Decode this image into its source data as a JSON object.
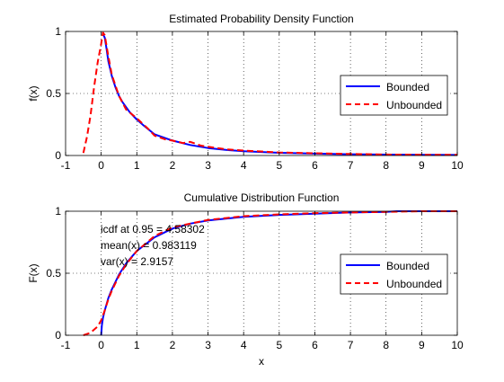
{
  "chart_data": [
    {
      "type": "line",
      "title": "Estimated Probability Density Function",
      "xlabel": "",
      "ylabel": "f(x)",
      "xlim": [
        -1,
        10
      ],
      "ylim": [
        0,
        1
      ],
      "xticks": [
        "-1",
        "0",
        "1",
        "2",
        "3",
        "4",
        "5",
        "6",
        "7",
        "8",
        "9",
        "10"
      ],
      "yticks": [
        "0",
        "0.5",
        "1"
      ],
      "grid": true,
      "legend": {
        "position": "right",
        "entries": [
          "Bounded",
          "Unbounded"
        ]
      },
      "series": [
        {
          "name": "Bounded",
          "color": "#0000ff",
          "style": "solid",
          "x": [
            0.05,
            0.1,
            0.15,
            0.2,
            0.3,
            0.4,
            0.5,
            0.6,
            0.8,
            1.0,
            1.2,
            1.5,
            2.0,
            2.5,
            3.0,
            3.5,
            4.0,
            4.5,
            5.0,
            6.0,
            7.0,
            8.0,
            9.0,
            10.0
          ],
          "y": [
            0.98,
            0.95,
            0.86,
            0.76,
            0.64,
            0.55,
            0.48,
            0.43,
            0.35,
            0.29,
            0.24,
            0.17,
            0.12,
            0.085,
            0.06,
            0.045,
            0.035,
            0.028,
            0.022,
            0.015,
            0.01,
            0.007,
            0.005,
            0.004
          ]
        },
        {
          "name": "Unbounded",
          "color": "#ff0000",
          "style": "dashed",
          "x": [
            -0.5,
            -0.4,
            -0.3,
            -0.2,
            -0.1,
            0.0,
            0.05,
            0.1,
            0.2,
            0.3,
            0.5,
            0.7,
            1.0,
            1.3,
            1.5,
            1.8,
            2.0,
            2.3,
            2.5,
            2.8,
            3.0,
            3.5,
            4.0,
            5.0,
            6.0,
            7.0,
            8.0,
            9.0,
            10.0
          ],
          "y": [
            0.02,
            0.15,
            0.32,
            0.55,
            0.75,
            0.9,
            0.99,
            0.97,
            0.8,
            0.65,
            0.48,
            0.37,
            0.3,
            0.22,
            0.16,
            0.13,
            0.12,
            0.1,
            0.11,
            0.08,
            0.07,
            0.05,
            0.04,
            0.025,
            0.018,
            0.012,
            0.008,
            0.006,
            0.005
          ]
        }
      ]
    },
    {
      "type": "line",
      "title": "Cumulative Distribution Function",
      "xlabel": "x",
      "ylabel": "F(x)",
      "xlim": [
        -1,
        10
      ],
      "ylim": [
        0,
        1
      ],
      "xticks": [
        "-1",
        "0",
        "1",
        "2",
        "3",
        "4",
        "5",
        "6",
        "7",
        "8",
        "9",
        "10"
      ],
      "yticks": [
        "0",
        "0.5",
        "1"
      ],
      "grid": true,
      "legend": {
        "position": "right",
        "entries": [
          "Bounded",
          "Unbounded"
        ]
      },
      "annotations": [
        "icdf at 0.95 = 4.58302",
        "mean(x) = 0.983119",
        "var(x) = 2.9157"
      ],
      "series": [
        {
          "name": "Bounded",
          "color": "#0000ff",
          "style": "solid",
          "x": [
            0.0,
            0.02,
            0.05,
            0.1,
            0.2,
            0.3,
            0.5,
            0.7,
            1.0,
            1.5,
            2.0,
            2.5,
            3.0,
            3.5,
            4.0,
            5.0,
            6.0,
            7.0,
            8.0,
            8.3,
            9.0,
            10.0
          ],
          "y": [
            0.0,
            0.08,
            0.14,
            0.2,
            0.3,
            0.37,
            0.49,
            0.58,
            0.68,
            0.79,
            0.86,
            0.9,
            0.925,
            0.94,
            0.955,
            0.97,
            0.98,
            0.99,
            0.995,
            1.0,
            1.0,
            1.0
          ]
        },
        {
          "name": "Unbounded",
          "color": "#ff0000",
          "style": "dashed",
          "x": [
            -0.5,
            -0.3,
            -0.1,
            0.0,
            0.1,
            0.2,
            0.3,
            0.5,
            0.7,
            1.0,
            1.5,
            2.0,
            2.5,
            3.0,
            3.5,
            4.0,
            5.0,
            6.0,
            7.0,
            8.0,
            9.0,
            10.0
          ],
          "y": [
            0.0,
            0.02,
            0.07,
            0.12,
            0.2,
            0.29,
            0.36,
            0.48,
            0.57,
            0.68,
            0.8,
            0.87,
            0.9,
            0.93,
            0.945,
            0.96,
            0.975,
            0.985,
            0.99,
            0.995,
            1.0,
            1.0
          ]
        }
      ]
    }
  ]
}
